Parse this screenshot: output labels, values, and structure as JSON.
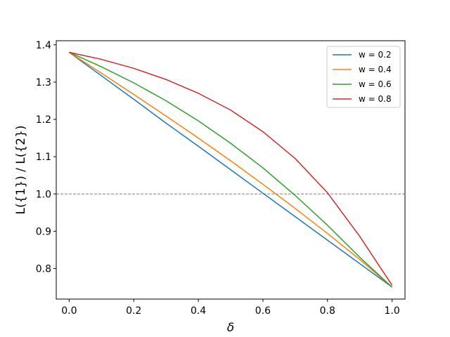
{
  "chart_data": {
    "type": "line",
    "title": "",
    "xlabel": "δ",
    "ylabel": "L({1}) / L({2})",
    "xlim": [
      -0.04,
      1.04
    ],
    "ylim": [
      0.718,
      1.411
    ],
    "xticks": [
      0.0,
      0.2,
      0.4,
      0.6,
      0.8,
      1.0
    ],
    "xtick_labels": [
      "0.0",
      "0.2",
      "0.4",
      "0.6",
      "0.8",
      "1.0"
    ],
    "yticks": [
      0.8,
      0.9,
      1.0,
      1.1,
      1.2,
      1.3,
      1.4
    ],
    "ytick_labels": [
      "0.8",
      "0.9",
      "1.0",
      "1.1",
      "1.2",
      "1.3",
      "1.4"
    ],
    "grid": false,
    "legend_position": "top-right",
    "reference_line": {
      "y": 1.0,
      "style": "dashed",
      "color": "#808080"
    },
    "x": [
      0.0,
      0.1,
      0.2,
      0.3,
      0.4,
      0.5,
      0.6,
      0.7,
      0.8,
      0.9,
      1.0
    ],
    "series": [
      {
        "name": "w = 0.2",
        "color": "#1f77b4",
        "values": [
          1.38,
          1.317,
          1.254,
          1.19,
          1.128,
          1.065,
          1.002,
          0.939,
          0.876,
          0.813,
          0.75
        ]
      },
      {
        "name": "w = 0.4",
        "color": "#ff7f0e",
        "values": [
          1.38,
          1.324,
          1.267,
          1.209,
          1.15,
          1.089,
          1.026,
          0.961,
          0.894,
          0.824,
          0.75
        ]
      },
      {
        "name": "w = 0.6",
        "color": "#2ca02c",
        "values": [
          1.38,
          1.341,
          1.298,
          1.25,
          1.196,
          1.136,
          1.07,
          0.996,
          0.916,
          0.83,
          0.75
        ]
      },
      {
        "name": "w = 0.8",
        "color": "#d62728",
        "values": [
          1.38,
          1.361,
          1.337,
          1.307,
          1.27,
          1.225,
          1.167,
          1.095,
          1.003,
          0.886,
          0.755
        ]
      }
    ]
  }
}
